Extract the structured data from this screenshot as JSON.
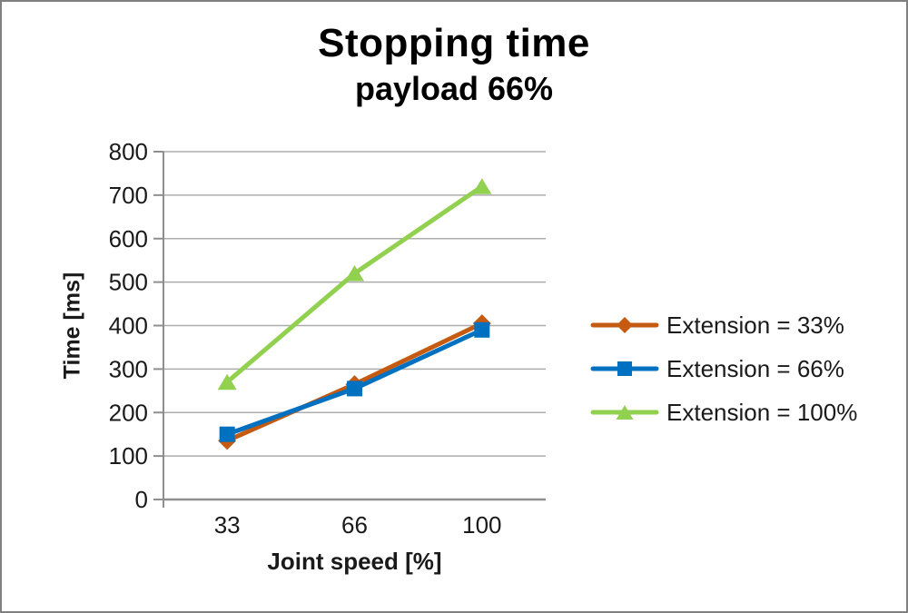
{
  "figure": {
    "title": "Stopping time",
    "subtitle": "payload 66%"
  },
  "chart_data": {
    "type": "line",
    "title": "Stopping time",
    "subtitle": "payload 66%",
    "categories": [
      "33",
      "66",
      "100"
    ],
    "xlabel": "Joint speed [%]",
    "ylabel": "Time [ms]",
    "ylim": [
      0,
      800
    ],
    "ytick_step": 100,
    "yticks": [
      0,
      100,
      200,
      300,
      400,
      500,
      600,
      700,
      800
    ],
    "grid": true,
    "legend_position": "right",
    "series": [
      {
        "name": "Extension = 33%",
        "marker": "diamond",
        "color": "#C55A11",
        "values": [
          135,
          265,
          405
        ]
      },
      {
        "name": "Extension = 66%",
        "marker": "square",
        "color": "#0070C0",
        "values": [
          150,
          255,
          390
        ]
      },
      {
        "name": "Extension = 100%",
        "marker": "triangle",
        "color": "#92D050",
        "values": [
          270,
          520,
          720
        ]
      }
    ],
    "colors": {
      "gridline": "#ADADAD",
      "axis": "#8F8F8F",
      "text": "#1a1a1a"
    }
  }
}
